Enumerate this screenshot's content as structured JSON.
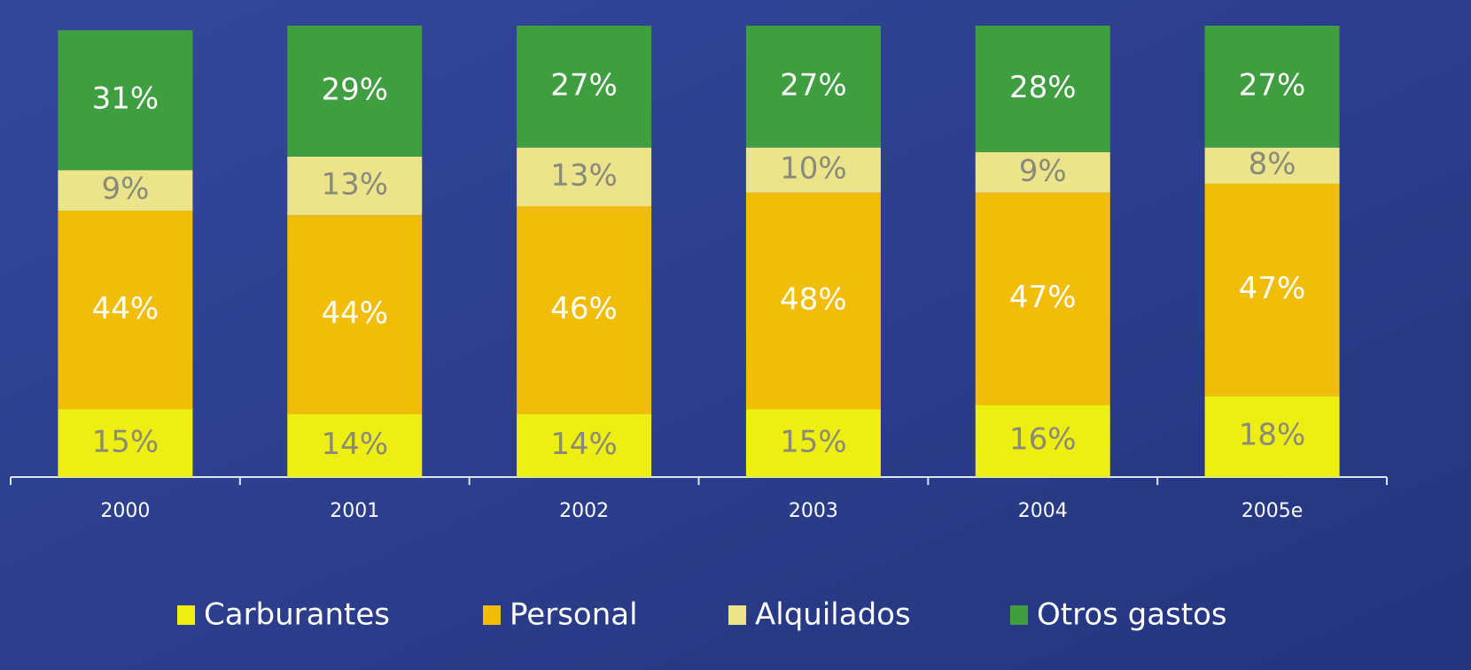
{
  "chart_data": {
    "type": "stacked_bar",
    "categories": [
      "2000",
      "2001",
      "2002",
      "2003",
      "2004",
      "2005e"
    ],
    "ylim": [
      0,
      100
    ],
    "series": [
      {
        "name": "Carburantes",
        "color": "#eeee10",
        "values": [
          15,
          14,
          14,
          15,
          16,
          18
        ],
        "value_labels": [
          "15%",
          "14%",
          "14%",
          "15%",
          "16%",
          "18%"
        ]
      },
      {
        "name": "Personal",
        "color": "#f2bd08",
        "values": [
          44,
          44,
          46,
          48,
          47,
          47
        ],
        "value_labels": [
          "44%",
          "44%",
          "46%",
          "48%",
          "47%",
          "47%"
        ]
      },
      {
        "name": "Alquilados",
        "color": "#ece48a",
        "values": [
          9,
          13,
          13,
          10,
          9,
          8
        ],
        "value_labels": [
          "9%",
          "13%",
          "13%",
          "10%",
          "9%",
          "8%"
        ]
      },
      {
        "name": "Otros gastos",
        "color": "#3f9e3f",
        "values": [
          31,
          29,
          27,
          27,
          28,
          27
        ],
        "value_labels": [
          "31%",
          "29%",
          "27%",
          "27%",
          "28%",
          "27%"
        ]
      }
    ]
  }
}
